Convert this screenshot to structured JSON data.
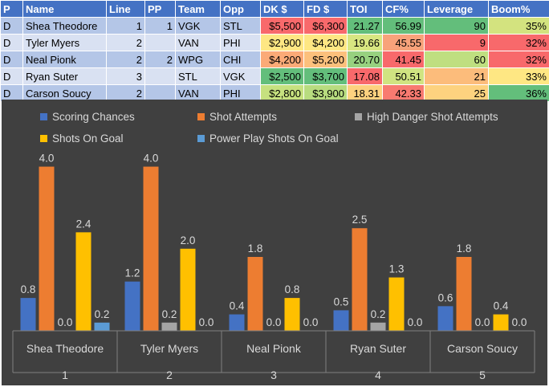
{
  "table": {
    "headers": [
      "P",
      "Name",
      "Line",
      "PP",
      "Team",
      "Opp",
      "DK $",
      "FD $",
      "TOI",
      "CF%",
      "Leverage",
      "Boom%"
    ],
    "rows": [
      [
        "D",
        "Shea Theodore",
        "1",
        "1",
        "VGK",
        "STL",
        "$5,500",
        "$6,300",
        "21.27",
        "56.99",
        "90",
        "35%"
      ],
      [
        "D",
        "Tyler Myers",
        "2",
        "",
        "VAN",
        "PHI",
        "$2,900",
        "$4,200",
        "19.66",
        "45.55",
        "9",
        "32%"
      ],
      [
        "D",
        "Neal Pionk",
        "2",
        "2",
        "WPG",
        "CHI",
        "$4,200",
        "$5,200",
        "20.70",
        "41.45",
        "60",
        "32%"
      ],
      [
        "D",
        "Ryan Suter",
        "3",
        "",
        "STL",
        "VGK",
        "$2,500",
        "$3,700",
        "17.08",
        "50.51",
        "21",
        "33%"
      ],
      [
        "D",
        "Carson Soucy",
        "2",
        "",
        "VAN",
        "PHI",
        "$2,800",
        "$3,900",
        "18.31",
        "42.33",
        "25",
        "36%"
      ]
    ],
    "cell_colors": [
      {
        "DK $": "#f8696b",
        "FD $": "#f8696b",
        "TOI": "#63be7b",
        "CF%": "#63be7b",
        "Leverage": "#63be7b",
        "Boom%": "#d3e37f"
      },
      {
        "DK $": "#fee783",
        "FD $": "#fee783",
        "TOI": "#d8e681",
        "CF%": "#f8a27a",
        "Leverage": "#f8696b",
        "Boom%": "#f8696b"
      },
      {
        "DK $": "#fbaa77",
        "FD $": "#fcc07c",
        "TOI": "#97d17f",
        "CF%": "#f8696b",
        "Leverage": "#bfdf80",
        "Boom%": "#f8696b"
      },
      {
        "DK $": "#63be7b",
        "FD $": "#63be7b",
        "TOI": "#f8696b",
        "CF%": "#d0e481",
        "Leverage": "#fcbc7b",
        "Boom%": "#fee783"
      },
      {
        "DK $": "#c6e17f",
        "FD $": "#b8dc7f",
        "TOI": "#fdd17f",
        "CF%": "#f87a70",
        "Leverage": "#fdd27f",
        "Boom%": "#63be7b"
      }
    ]
  },
  "chart_data": {
    "type": "bar",
    "background": "#404040",
    "categories": [
      "Shea Theodore",
      "Tyler Myers",
      "Neal Pionk",
      "Ryan Suter",
      "Carson Soucy"
    ],
    "category_index": [
      "1",
      "2",
      "3",
      "4",
      "5"
    ],
    "series": [
      {
        "name": "Scoring Chances",
        "color": "#4472c4",
        "values": [
          0.8,
          1.2,
          0.4,
          0.5,
          0.6
        ]
      },
      {
        "name": "Shot Attempts",
        "color": "#ed7d31",
        "values": [
          4.0,
          4.0,
          1.8,
          2.5,
          1.8
        ]
      },
      {
        "name": "High Danger Shot Attempts",
        "color": "#a5a5a5",
        "values": [
          0.0,
          0.2,
          0.0,
          0.2,
          0.0
        ]
      },
      {
        "name": "Shots On Goal",
        "color": "#ffc000",
        "values": [
          2.4,
          2.0,
          0.8,
          1.3,
          0.4
        ]
      },
      {
        "name": "Power Play Shots On Goal",
        "color": "#5b9bd5",
        "values": [
          0.2,
          0.0,
          0.0,
          0.0,
          0.0
        ]
      }
    ],
    "ylim": [
      0,
      4.5
    ],
    "legend_position": "top",
    "grid": false
  }
}
